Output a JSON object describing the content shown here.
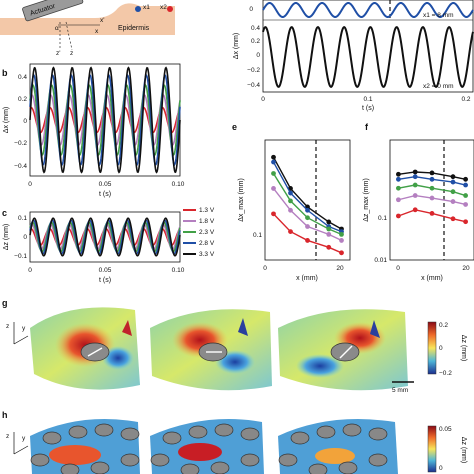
{
  "figure": {
    "panel_labels": [
      "b",
      "c",
      "e",
      "f",
      "g",
      "h"
    ],
    "panel_a": {
      "actuator_label": "Actuator",
      "epidermis_label": "Epidermis",
      "points": [
        "x1",
        "x2"
      ],
      "point_colors": [
        "#1f4fa6",
        "#d9262c"
      ],
      "axis_glyphs": {
        "alpha": "α",
        "x_prime": "x'",
        "x": "x",
        "z_prime": "z'",
        "z": "z"
      }
    },
    "panel_d": {
      "top_label": "x1 = 8 mm",
      "bottom_label": "x2 = 0 mm",
      "ylabel": "Δx (mm)",
      "xlabel": "t (s)",
      "yticks_top": [
        "0"
      ],
      "yticks_bottom": [
        "0.4",
        "0.2",
        "0",
        "−0.2",
        "−0.4"
      ],
      "xticks": [
        "0",
        "0.1",
        "0.2"
      ]
    },
    "panel_b": {
      "ylabel": "Δx (mm)",
      "xlabel": "t (s)",
      "yticks": [
        "0.4",
        "0.2",
        "0",
        "−0.2",
        "−0.4"
      ],
      "xticks": [
        "0",
        "0.05",
        "0.10"
      ]
    },
    "panel_c": {
      "ylabel": "Δz (mm)",
      "xlabel": "t (s)",
      "yticks": [
        "0.1",
        "0",
        "−0.1"
      ],
      "xticks": [
        "0",
        "0.05",
        "0.10"
      ]
    },
    "legend": [
      {
        "label": "1.3 V",
        "color": "#d9262c"
      },
      {
        "label": "1.8 V",
        "color": "#b47fc0"
      },
      {
        "label": "2.3 V",
        "color": "#41a047"
      },
      {
        "label": "2.8 V",
        "color": "#1f4fa6"
      },
      {
        "label": "3.3 V",
        "color": "#111111"
      }
    ],
    "panel_e": {
      "ylabel": "Δx_max (mm)",
      "xlabel": "x (mm)",
      "yticks": [
        "0.1"
      ],
      "xticks": [
        "0",
        "20"
      ]
    },
    "panel_f": {
      "ylabel": "Δz_max (mm)",
      "xlabel": "x (mm)",
      "yticks": [
        "0.1",
        "0.01"
      ],
      "xticks": [
        "0",
        "20"
      ]
    },
    "panel_g": {
      "colorbar_label": "Δz (mm)",
      "colorbar_ticks": [
        "0.2",
        "0",
        "−0.2"
      ],
      "scalebar": "5 mm",
      "axes_glyphs": [
        "z",
        "y"
      ]
    },
    "panel_h": {
      "colorbar_label": "Δz (mm)",
      "colorbar_ticks": [
        "0.05",
        "0"
      ],
      "axes_glyphs": [
        "z",
        "y"
      ]
    }
  },
  "chart_data": [
    {
      "type": "line",
      "panel": "b",
      "xlabel": "t (s)",
      "ylabel": "Δx (mm)",
      "xlim": [
        0,
        0.1
      ],
      "ylim": [
        -0.45,
        0.45
      ],
      "frequency_hz": 80,
      "series": [
        {
          "name": "1.3 V",
          "amplitude": 0.1,
          "phase": 1.2
        },
        {
          "name": "1.8 V",
          "amplitude": 0.2,
          "phase": 0.9
        },
        {
          "name": "2.3 V",
          "amplitude": 0.28,
          "phase": 0.6
        },
        {
          "name": "2.8 V",
          "amplitude": 0.36,
          "phase": 0.3
        },
        {
          "name": "3.3 V",
          "amplitude": 0.42,
          "phase": 0.0
        }
      ]
    },
    {
      "type": "line",
      "panel": "c",
      "xlabel": "t (s)",
      "ylabel": "Δz (mm)",
      "xlim": [
        0,
        0.1
      ],
      "ylim": [
        -0.12,
        0.12
      ],
      "frequency_hz": 80,
      "series": [
        {
          "name": "1.3 V",
          "amplitude": 0.04,
          "phase": 1.3
        },
        {
          "name": "1.8 V",
          "amplitude": 0.06,
          "phase": 1.0
        },
        {
          "name": "2.3 V",
          "amplitude": 0.07,
          "phase": 0.7
        },
        {
          "name": "2.8 V",
          "amplitude": 0.08,
          "phase": 0.4
        },
        {
          "name": "3.3 V",
          "amplitude": 0.09,
          "phase": 0.1
        }
      ]
    },
    {
      "type": "line",
      "panel": "d",
      "xlabel": "t (s)",
      "ylabel": "Δx (mm)",
      "xlim": [
        0,
        0.2
      ],
      "ylim": [
        -0.45,
        0.45
      ],
      "frequency_hz": 40,
      "series": [
        {
          "name": "x1 = 8 mm",
          "amplitude": 0.05,
          "offset": 0.55
        },
        {
          "name": "x2 = 0 mm",
          "amplitude": 0.42,
          "offset": 0
        }
      ]
    },
    {
      "type": "line",
      "panel": "e",
      "xlabel": "x (mm)",
      "ylabel": "Δx_max (mm)",
      "xlim": [
        0,
        20
      ],
      "ylim": [
        0.05,
        0.6
      ],
      "yscale": "log",
      "x": [
        2,
        6,
        10,
        15,
        18
      ],
      "series": [
        {
          "name": "3.3 V",
          "values": [
            0.42,
            0.22,
            0.15,
            0.11,
            0.095
          ]
        },
        {
          "name": "2.8 V",
          "values": [
            0.38,
            0.2,
            0.14,
            0.1,
            0.09
          ]
        },
        {
          "name": "2.3 V",
          "values": [
            0.3,
            0.17,
            0.12,
            0.095,
            0.085
          ]
        },
        {
          "name": "1.8 V",
          "values": [
            0.22,
            0.14,
            0.1,
            0.085,
            0.075
          ]
        },
        {
          "name": "1.3 V",
          "values": [
            0.13,
            0.09,
            0.075,
            0.065,
            0.058
          ]
        }
      ]
    },
    {
      "type": "line",
      "panel": "f",
      "xlabel": "x (mm)",
      "ylabel": "Δz_max (mm)",
      "xlim": [
        0,
        20
      ],
      "ylim": [
        0.01,
        0.2
      ],
      "yscale": "log",
      "x": [
        2,
        6,
        10,
        15,
        18
      ],
      "series": [
        {
          "name": "3.3 V",
          "values": [
            0.085,
            0.09,
            0.088,
            0.08,
            0.075
          ]
        },
        {
          "name": "2.8 V",
          "values": [
            0.075,
            0.08,
            0.075,
            0.07,
            0.065
          ]
        },
        {
          "name": "2.3 V",
          "values": [
            0.06,
            0.065,
            0.06,
            0.055,
            0.05
          ]
        },
        {
          "name": "1.8 V",
          "values": [
            0.045,
            0.05,
            0.047,
            0.043,
            0.04
          ]
        },
        {
          "name": "1.3 V",
          "values": [
            0.03,
            0.035,
            0.032,
            0.028,
            0.026
          ]
        }
      ]
    }
  ]
}
